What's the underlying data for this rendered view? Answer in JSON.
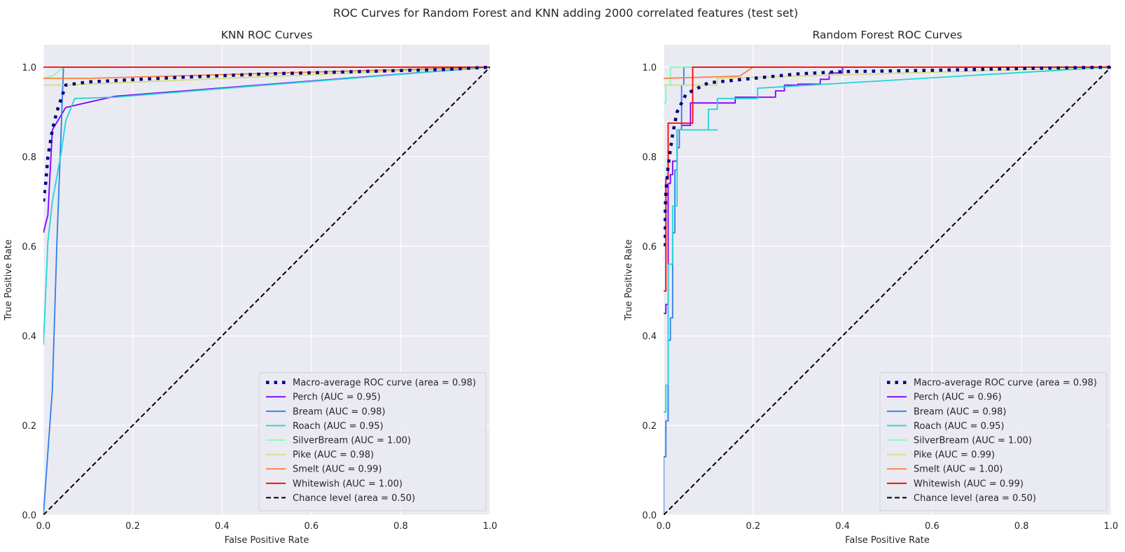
{
  "figure": {
    "suptitle": "ROC Curves for Random Forest and KNN adding 2000 correlated features (test set)"
  },
  "chart_data": [
    {
      "type": "line",
      "title": "KNN ROC Curves",
      "xlabel": "False Positive Rate",
      "ylabel": "True Positive Rate",
      "xlim": [
        0,
        1
      ],
      "ylim": [
        0,
        1.05
      ],
      "xticks": [
        0.0,
        0.2,
        0.4,
        0.6,
        0.8,
        1.0
      ],
      "yticks": [
        0.0,
        0.2,
        0.4,
        0.6,
        0.8,
        1.0
      ],
      "tick_labels": [
        "0.0",
        "0.2",
        "0.4",
        "0.6",
        "0.8",
        "1.0"
      ],
      "grid": true,
      "legend_position": "lower-right",
      "series": [
        {
          "name": "Macro-average ROC curve (area = 0.98)",
          "color": "#000080",
          "style": "dotted-thick",
          "x": [
            0,
            0.005,
            0.01,
            0.02,
            0.03,
            0.04,
            0.05,
            0.1,
            0.2,
            0.3,
            0.5,
            0.7,
            0.9,
            1.0
          ],
          "y": [
            0.7,
            0.74,
            0.8,
            0.86,
            0.9,
            0.93,
            0.96,
            0.967,
            0.972,
            0.977,
            0.985,
            0.99,
            0.995,
            1.0
          ]
        },
        {
          "name": "Perch (AUC = 0.95)",
          "color": "#8000ff",
          "style": "solid",
          "x": [
            0,
            0.01,
            0.02,
            0.05,
            0.16,
            1.0
          ],
          "y": [
            0.63,
            0.67,
            0.86,
            0.91,
            0.935,
            1.0
          ]
        },
        {
          "name": "Bream (AUC = 0.98)",
          "color": "#2c7fe8",
          "style": "solid",
          "x": [
            0,
            0.02,
            0.03,
            0.045,
            1.0
          ],
          "y": [
            0.0,
            0.28,
            0.6,
            1.0,
            1.0
          ]
        },
        {
          "name": "Roach (AUC = 0.95)",
          "color": "#1ed6d6",
          "style": "solid",
          "x": [
            0,
            0.01,
            0.02,
            0.04,
            0.05,
            0.07,
            0.16,
            1.0
          ],
          "y": [
            0.38,
            0.61,
            0.7,
            0.81,
            0.88,
            0.93,
            0.933,
            1.0
          ]
        },
        {
          "name": "SilverBream (AUC = 1.00)",
          "color": "#80ffb4",
          "style": "solid",
          "x": [
            0,
            0.02,
            0.045,
            0.05,
            1.0
          ],
          "y": [
            0.975,
            0.98,
            1.0,
            1.0,
            1.0
          ]
        },
        {
          "name": "Pike (AUC = 0.98)",
          "color": "#d4dd80",
          "style": "solid",
          "x": [
            0,
            0.05,
            1.0
          ],
          "y": [
            0.96,
            0.96,
            1.0
          ]
        },
        {
          "name": "Smelt (AUC = 0.99)",
          "color": "#ff7f3f",
          "style": "solid",
          "x": [
            0,
            0.1,
            1.0
          ],
          "y": [
            0.975,
            0.975,
            1.0
          ]
        },
        {
          "name": "Whitewish (AUC = 1.00)",
          "color": "#ff0000",
          "style": "solid",
          "x": [
            0,
            1.0
          ],
          "y": [
            1.0,
            1.0
          ]
        },
        {
          "name": "Chance level (area = 0.50)",
          "color": "#000000",
          "style": "dashed",
          "x": [
            0,
            1.0
          ],
          "y": [
            0,
            1.0
          ]
        }
      ]
    },
    {
      "type": "line",
      "title": "Random Forest ROC Curves",
      "xlabel": "False Positive Rate",
      "ylabel": "True Positive Rate",
      "xlim": [
        0,
        1
      ],
      "ylim": [
        0,
        1.05
      ],
      "xticks": [
        0.0,
        0.2,
        0.4,
        0.6,
        0.8,
        1.0
      ],
      "yticks": [
        0.0,
        0.2,
        0.4,
        0.6,
        0.8,
        1.0
      ],
      "tick_labels": [
        "0.0",
        "0.2",
        "0.4",
        "0.6",
        "0.8",
        "1.0"
      ],
      "grid": true,
      "legend_position": "lower-right",
      "series": [
        {
          "name": "Macro-average ROC curve (area = 0.98)",
          "color": "#000080",
          "style": "dotted-thick",
          "x": [
            0,
            0.005,
            0.01,
            0.02,
            0.03,
            0.05,
            0.1,
            0.2,
            0.3,
            0.4,
            0.6,
            0.8,
            1.0
          ],
          "y": [
            0.6,
            0.72,
            0.78,
            0.85,
            0.9,
            0.94,
            0.965,
            0.975,
            0.985,
            0.99,
            0.993,
            0.997,
            1.0
          ]
        },
        {
          "name": "Perch (AUC = 0.96)",
          "color": "#8000ff",
          "style": "solid",
          "x": [
            0,
            0.005,
            0.005,
            0.01,
            0.01,
            0.015,
            0.015,
            0.02,
            0.02,
            0.03,
            0.03,
            0.04,
            0.04,
            0.06,
            0.06,
            0.16,
            0.16,
            0.25,
            0.25,
            0.27,
            0.27,
            0.3,
            0.3,
            0.35,
            0.35,
            0.37,
            0.37,
            0.4,
            0.4,
            1.0
          ],
          "y": [
            0.45,
            0.45,
            0.47,
            0.47,
            0.74,
            0.74,
            0.76,
            0.76,
            0.79,
            0.79,
            0.86,
            0.86,
            0.87,
            0.87,
            0.92,
            0.92,
            0.933,
            0.933,
            0.947,
            0.947,
            0.96,
            0.96,
            0.962,
            0.962,
            0.973,
            0.973,
            0.987,
            0.987,
            1.0,
            1.0
          ]
        },
        {
          "name": "Bream (AUC = 0.98)",
          "color": "#2c7fe8",
          "style": "solid",
          "x": [
            0,
            0.0,
            0.005,
            0.005,
            0.01,
            0.01,
            0.015,
            0.015,
            0.02,
            0.02,
            0.025,
            0.025,
            0.03,
            0.03,
            0.035,
            0.035,
            0.04,
            0.04,
            0.045,
            0.045,
            1.0
          ],
          "y": [
            0,
            0.13,
            0.13,
            0.21,
            0.21,
            0.39,
            0.39,
            0.44,
            0.44,
            0.63,
            0.63,
            0.77,
            0.77,
            0.82,
            0.82,
            0.86,
            0.86,
            0.96,
            0.96,
            1.0,
            1.0
          ]
        },
        {
          "name": "Roach (AUC = 0.95)",
          "color": "#1ed6d6",
          "style": "solid",
          "x": [
            0,
            0.005,
            0.005,
            0.01,
            0.01,
            0.02,
            0.02,
            0.03,
            0.03,
            0.12,
            0.12,
            0.1,
            0.1,
            0.12,
            0.12,
            0.21,
            0.21,
            1.0
          ],
          "y": [
            0.23,
            0.23,
            0.29,
            0.29,
            0.56,
            0.56,
            0.69,
            0.69,
            0.86,
            0.86,
            0.86,
            0.86,
            0.906,
            0.906,
            0.93,
            0.93,
            0.953,
            1.0
          ]
        },
        {
          "name": "SilverBream (AUC = 1.00)",
          "color": "#80ffb4",
          "style": "solid",
          "x": [
            0,
            0.005,
            0.005,
            0.015,
            0.015,
            0.06,
            1.0
          ],
          "y": [
            0.92,
            0.92,
            0.96,
            0.96,
            1.0,
            1.0,
            1.0
          ]
        },
        {
          "name": "Pike (AUC = 0.99)",
          "color": "#d4dd80",
          "style": "solid",
          "x": [
            0,
            0.12,
            0.12,
            1.0
          ],
          "y": [
            0.96,
            0.96,
            0.975,
            1.0
          ]
        },
        {
          "name": "Smelt (AUC = 1.00)",
          "color": "#ff7f3f",
          "style": "solid",
          "x": [
            0,
            0.17,
            0.2,
            0.2,
            1.0
          ],
          "y": [
            0.975,
            0.98,
            1.0,
            1.0,
            1.0
          ]
        },
        {
          "name": "Whitewish (AUC = 0.99)",
          "color": "#ff0000",
          "style": "solid",
          "x": [
            0,
            0.005,
            0.005,
            0.01,
            0.01,
            0.06,
            0.06,
            0.065,
            0.065,
            1.0
          ],
          "y": [
            0.5,
            0.5,
            0.75,
            0.75,
            0.875,
            0.875,
            0.875,
            0.875,
            1.0,
            1.0
          ]
        },
        {
          "name": "Chance level (area = 0.50)",
          "color": "#000000",
          "style": "dashed",
          "x": [
            0,
            1.0
          ],
          "y": [
            0,
            1.0
          ]
        }
      ]
    }
  ]
}
